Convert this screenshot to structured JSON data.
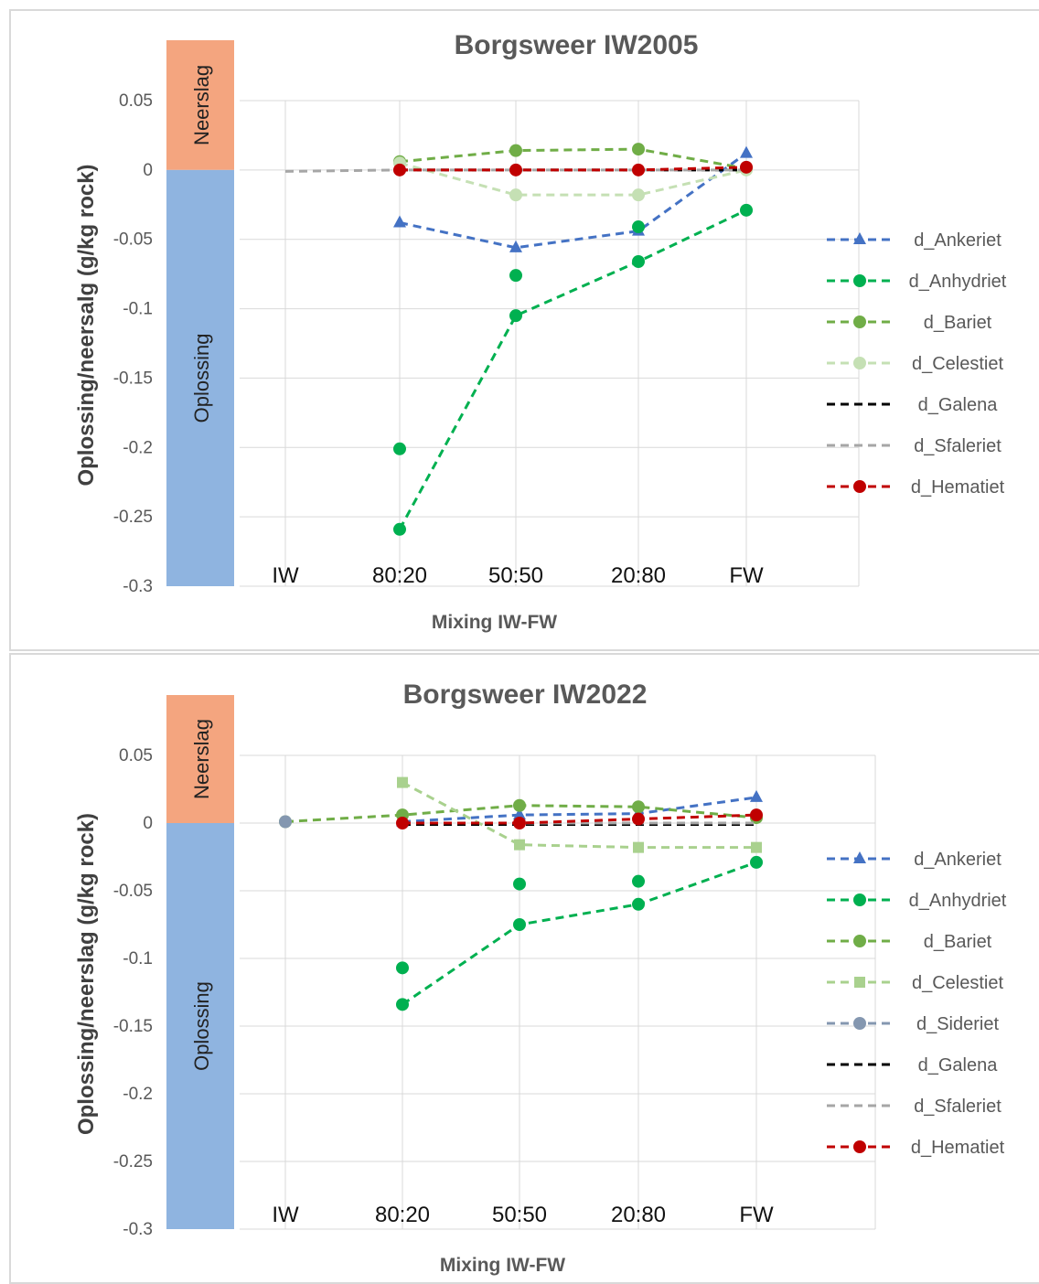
{
  "charts": [
    {
      "chart_data": {
        "type": "line",
        "title": "Borgsweer IW2005",
        "xlabel": "Mixing IW-FW",
        "ylabel": "Oplossing/neersalg (g/kg rock)",
        "categories": [
          "IW",
          "80:20",
          "50:50",
          "20:80",
          "FW"
        ],
        "ylim": [
          -0.3,
          0.05
        ],
        "yticks": [
          "0.05",
          "0",
          "-0.05",
          "-0.1",
          "-0.15",
          "-0.2",
          "-0.25",
          "-0.3"
        ],
        "grid": true,
        "legend_position": "right",
        "band_labels": {
          "upper": "Neerslag",
          "lower": "Oplossing"
        },
        "series": [
          {
            "name": "d_Ankeriet",
            "color": "#4472c4",
            "marker": "triangle",
            "values": [
              null,
              -0.038,
              -0.056,
              -0.044,
              0.012
            ]
          },
          {
            "name": "d_Anhydriet",
            "color": "#00b050",
            "marker": "circle",
            "values": [
              null,
              -0.259,
              -0.105,
              -0.066,
              -0.029
            ]
          },
          {
            "name": "d_Anhydriet_b",
            "color": "#00b050",
            "marker": "circle",
            "line": false,
            "legend": false,
            "values": [
              null,
              -0.201,
              -0.076,
              -0.041,
              null
            ]
          },
          {
            "name": "d_Bariet",
            "color": "#70ad47",
            "marker": "circle",
            "values": [
              null,
              0.006,
              0.014,
              0.015,
              0.001
            ]
          },
          {
            "name": "d_Celestiet",
            "color": "#c5e0b4",
            "marker": "circle",
            "values": [
              null,
              0.005,
              -0.018,
              -0.018,
              0.0
            ]
          },
          {
            "name": "d_Galena",
            "color": "#000000",
            "marker": "none",
            "values": [
              null,
              0.0,
              0.0,
              0.0,
              0.0
            ]
          },
          {
            "name": "d_Sfaleriet",
            "color": "#a6a6a6",
            "marker": "none",
            "values": [
              -0.001,
              0.0,
              0.0,
              0.0,
              0.0
            ]
          },
          {
            "name": "d_Hematiet",
            "color": "#c00000",
            "marker": "circle",
            "values": [
              null,
              0.0,
              0.0,
              0.0,
              0.002
            ]
          }
        ]
      }
    },
    {
      "chart_data": {
        "type": "line",
        "title": "Borgsweer IW2022",
        "xlabel": "Mixing IW-FW",
        "ylabel": "Oplossing/neerslag (g/kg rock)",
        "categories": [
          "IW",
          "80:20",
          "50:50",
          "20:80",
          "FW"
        ],
        "ylim": [
          -0.3,
          0.05
        ],
        "yticks": [
          "0.05",
          "0",
          "-0.05",
          "-0.1",
          "-0.15",
          "-0.2",
          "-0.25",
          "-0.3"
        ],
        "grid": true,
        "legend_position": "right",
        "band_labels": {
          "upper": "Neerslag",
          "lower": "Oplossing"
        },
        "series": [
          {
            "name": "d_Ankeriet",
            "color": "#4472c4",
            "marker": "triangle",
            "values": [
              null,
              0.001,
              0.006,
              0.007,
              0.019
            ]
          },
          {
            "name": "d_Anhydriet",
            "color": "#00b050",
            "marker": "circle",
            "values": [
              null,
              -0.134,
              -0.075,
              -0.06,
              -0.029
            ]
          },
          {
            "name": "d_Anhydriet_b",
            "color": "#00b050",
            "marker": "circle",
            "line": false,
            "legend": false,
            "values": [
              null,
              -0.107,
              -0.045,
              -0.043,
              null
            ]
          },
          {
            "name": "d_Bariet",
            "color": "#70ad47",
            "marker": "circle",
            "values": [
              0.001,
              0.006,
              0.013,
              0.012,
              0.004
            ]
          },
          {
            "name": "d_Celestiet",
            "color": "#a9d18e",
            "marker": "square",
            "values": [
              null,
              0.03,
              -0.016,
              -0.018,
              -0.018
            ]
          },
          {
            "name": "d_Sideriet",
            "color": "#8497b0",
            "marker": "circle",
            "values": [
              0.001,
              null,
              null,
              null,
              null
            ]
          },
          {
            "name": "d_Galena",
            "color": "#000000",
            "marker": "none",
            "values": [
              null,
              -0.001,
              -0.001,
              -0.001,
              -0.001
            ]
          },
          {
            "name": "d_Sfaleriet",
            "color": "#a6a6a6",
            "marker": "none",
            "values": [
              null,
              0.0,
              0.0,
              0.0,
              0.0
            ]
          },
          {
            "name": "d_Hematiet",
            "color": "#c00000",
            "marker": "circle",
            "values": [
              null,
              0.0,
              0.0,
              0.003,
              0.006
            ]
          }
        ]
      }
    }
  ]
}
